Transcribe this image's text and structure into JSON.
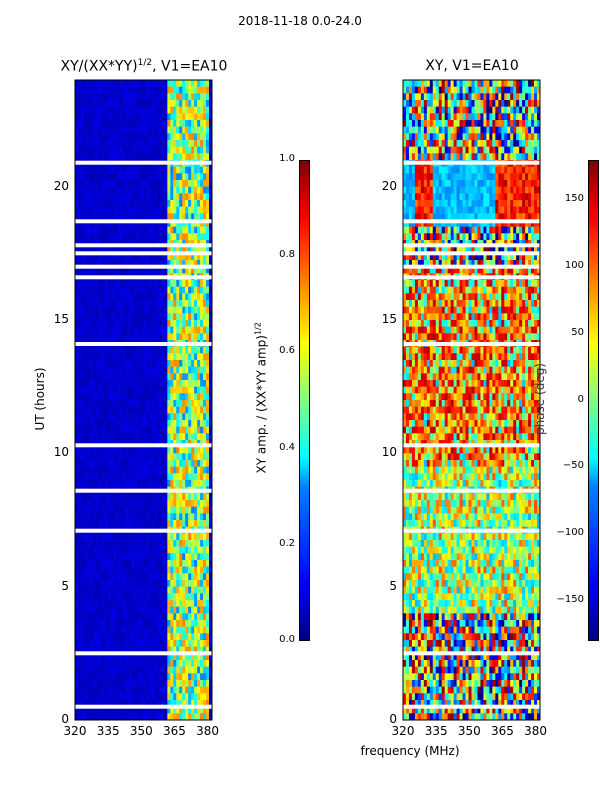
{
  "suptitle": "2018-11-18 0.0-24.0",
  "chart_data": [
    {
      "type": "heatmap",
      "title": "XY/(XX*YY)",
      "title_exp": "1/2",
      "title_suffix": ", V1=EA10",
      "xlabel": "",
      "ylabel": "UT (hours)",
      "xlim": [
        320,
        382
      ],
      "ylim": [
        0,
        24
      ],
      "xticks": [
        320,
        335,
        350,
        365,
        380
      ],
      "yticks": [
        0,
        5,
        10,
        15,
        20
      ],
      "active_band_mhz": [
        362,
        380
      ],
      "value_range": [
        0.0,
        1.0
      ],
      "colorbar": {
        "label": "XY amp. / (XX*YY amp)",
        "label_exp": "1/2",
        "ticks": [
          "0.0",
          "0.2",
          "0.4",
          "0.6",
          "0.8",
          "1.0"
        ],
        "range": [
          0.0,
          1.0
        ]
      },
      "flagged_ut_hours": [
        0.5,
        2.5,
        7.1,
        8.6,
        10.3,
        14.1,
        16.6,
        17.0,
        17.5,
        17.8,
        18.7,
        20.9
      ]
    },
    {
      "type": "heatmap",
      "title": "XY, V1=EA10",
      "xlabel": "frequency (MHz)",
      "ylabel": "",
      "xlim": [
        320,
        382
      ],
      "ylim": [
        0,
        24
      ],
      "xticks": [
        320,
        335,
        350,
        365,
        380
      ],
      "yticks": [
        0,
        5,
        10,
        15,
        20
      ],
      "value_range": [
        -180,
        180
      ],
      "colorbar": {
        "label": "phase (deg)",
        "ticks": [
          "−150",
          "−100",
          "−50",
          "0",
          "50",
          "100",
          "150"
        ],
        "range": [
          -180,
          180
        ]
      },
      "flagged_ut_hours": [
        0.5,
        2.5,
        7.1,
        8.6,
        10.3,
        14.1,
        16.6,
        17.0,
        17.5,
        17.8,
        18.7,
        20.9
      ]
    }
  ]
}
